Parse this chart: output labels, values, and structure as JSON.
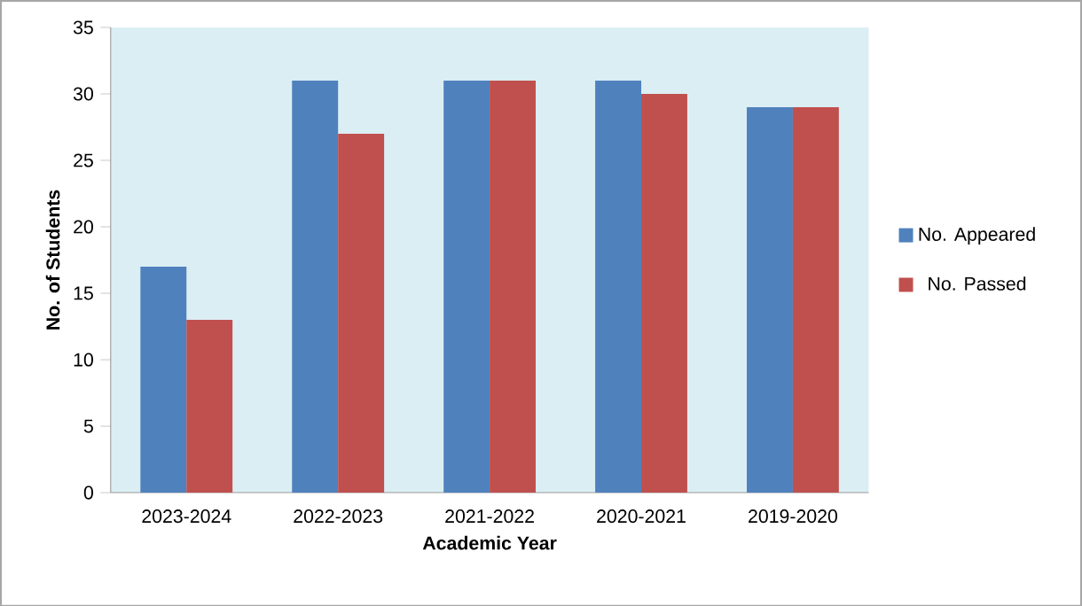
{
  "chart_data": {
    "type": "bar",
    "xlabel": "Academic Year",
    "ylabel": "No. of Students",
    "categories": [
      "2023-2024",
      "2022-2023",
      "2021-2022",
      "2020-2021",
      "2019-2020"
    ],
    "series": [
      {
        "name": "No. Appeared",
        "color": "#4f81bd",
        "values": [
          17,
          31,
          31,
          31,
          29
        ]
      },
      {
        "name": "No. Passed",
        "color": "#c0504d",
        "values": [
          13,
          27,
          31,
          30,
          29
        ]
      }
    ],
    "ylim": [
      0,
      35
    ],
    "yticks": [
      0,
      5,
      10,
      15,
      20,
      25,
      30,
      35
    ],
    "grid": false,
    "legend": "right"
  }
}
